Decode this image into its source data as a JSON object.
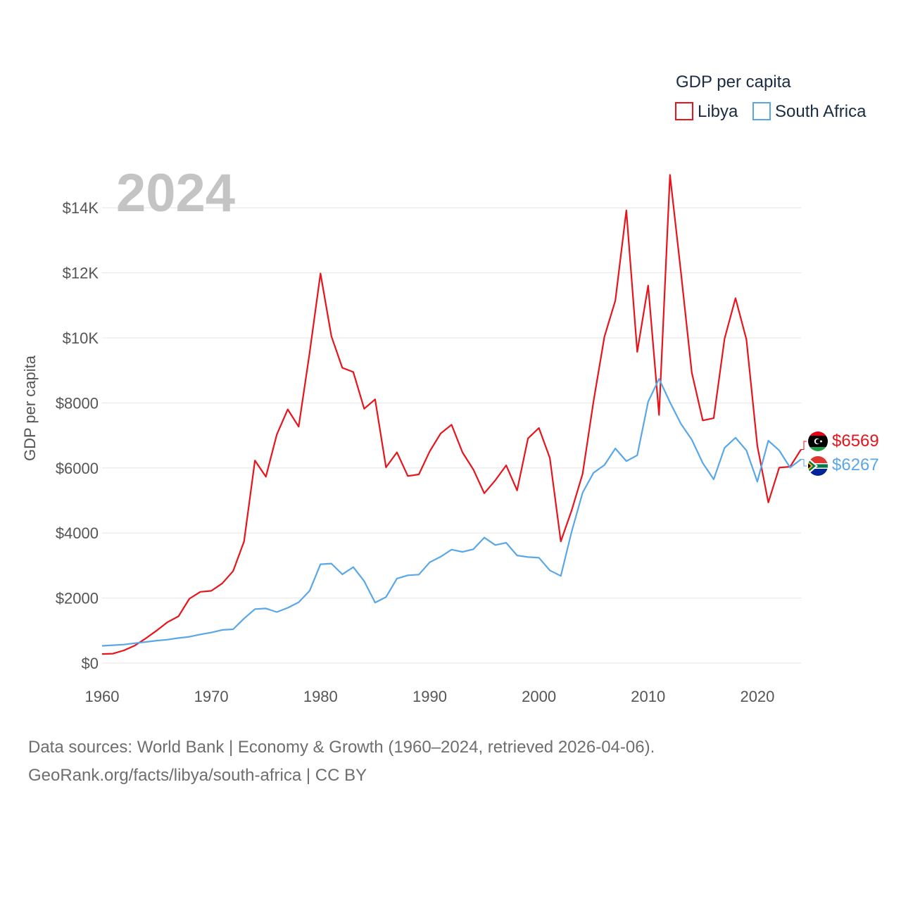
{
  "year_label": "2024",
  "legend": {
    "title": "GDP per capita",
    "items": [
      {
        "name": "Libya",
        "color": "#e8141c"
      },
      {
        "name": "South Africa",
        "color": "#5aa7e8"
      }
    ]
  },
  "chart_data": {
    "type": "line",
    "title": "GDP per capita",
    "xlabel": "",
    "ylabel": "GDP per capita",
    "xlim": [
      1960,
      2024
    ],
    "ylim": [
      0,
      15000
    ],
    "x_ticks": [
      1960,
      1970,
      1980,
      1990,
      2000,
      2010,
      2020
    ],
    "x_tick_labels": [
      "1960",
      "1970",
      "1980",
      "1990",
      "2000",
      "2010",
      "2020"
    ],
    "y_ticks": [
      0,
      2000,
      4000,
      6000,
      8000,
      10000,
      12000,
      14000
    ],
    "y_tick_labels": [
      "$0",
      "$2000",
      "$4000",
      "$6000",
      "$8000",
      "$10K",
      "$12K",
      "$14K"
    ],
    "grid": true,
    "legend_position": "top-right",
    "x": [
      1960,
      1961,
      1962,
      1963,
      1964,
      1965,
      1966,
      1967,
      1968,
      1969,
      1970,
      1971,
      1972,
      1973,
      1974,
      1975,
      1976,
      1977,
      1978,
      1979,
      1980,
      1981,
      1982,
      1983,
      1984,
      1985,
      1986,
      1987,
      1988,
      1989,
      1990,
      1991,
      1992,
      1993,
      1994,
      1995,
      1996,
      1997,
      1998,
      1999,
      2000,
      2001,
      2002,
      2003,
      2004,
      2005,
      2006,
      2007,
      2008,
      2009,
      2010,
      2011,
      2012,
      2013,
      2014,
      2015,
      2016,
      2017,
      2018,
      2019,
      2020,
      2021,
      2022,
      2023,
      2024
    ],
    "series": [
      {
        "name": "Libya",
        "color": "#e8141c",
        "end_label": "$6569",
        "values": [
          280,
          290,
          390,
          540,
          760,
          1000,
          1260,
          1440,
          1980,
          2190,
          2220,
          2450,
          2830,
          3740,
          6230,
          5730,
          7030,
          7800,
          7270,
          9530,
          11980,
          10050,
          9080,
          8950,
          7820,
          8110,
          6020,
          6480,
          5750,
          5800,
          6510,
          7060,
          7330,
          6480,
          5950,
          5220,
          5620,
          6080,
          5310,
          6910,
          7230,
          6310,
          3740,
          4700,
          5820,
          8050,
          10040,
          11150,
          13920,
          9570,
          11610,
          7630,
          15010,
          12030,
          8930,
          7460,
          7530,
          9980,
          11220,
          9950,
          6680,
          4940,
          6010,
          6040,
          6569
        ]
      },
      {
        "name": "South Africa",
        "color": "#5aa7e8",
        "end_label": "$6267",
        "values": [
          530,
          550,
          570,
          610,
          650,
          690,
          720,
          770,
          810,
          880,
          940,
          1020,
          1040,
          1370,
          1660,
          1680,
          1570,
          1700,
          1870,
          2220,
          3040,
          3060,
          2730,
          2950,
          2520,
          1860,
          2030,
          2600,
          2700,
          2720,
          3100,
          3270,
          3490,
          3420,
          3500,
          3860,
          3630,
          3700,
          3310,
          3260,
          3240,
          2850,
          2680,
          4050,
          5240,
          5850,
          6090,
          6600,
          6210,
          6390,
          8040,
          8740,
          8020,
          7360,
          6870,
          6150,
          5650,
          6620,
          6930,
          6540,
          5580,
          6840,
          6540,
          6010,
          6267
        ]
      }
    ]
  },
  "footer": {
    "line1": "Data sources: World Bank | Economy & Growth (1960–2024, retrieved 2026-04-06).",
    "line2": "GeoRank.org/facts/libya/south-africa | CC BY"
  }
}
